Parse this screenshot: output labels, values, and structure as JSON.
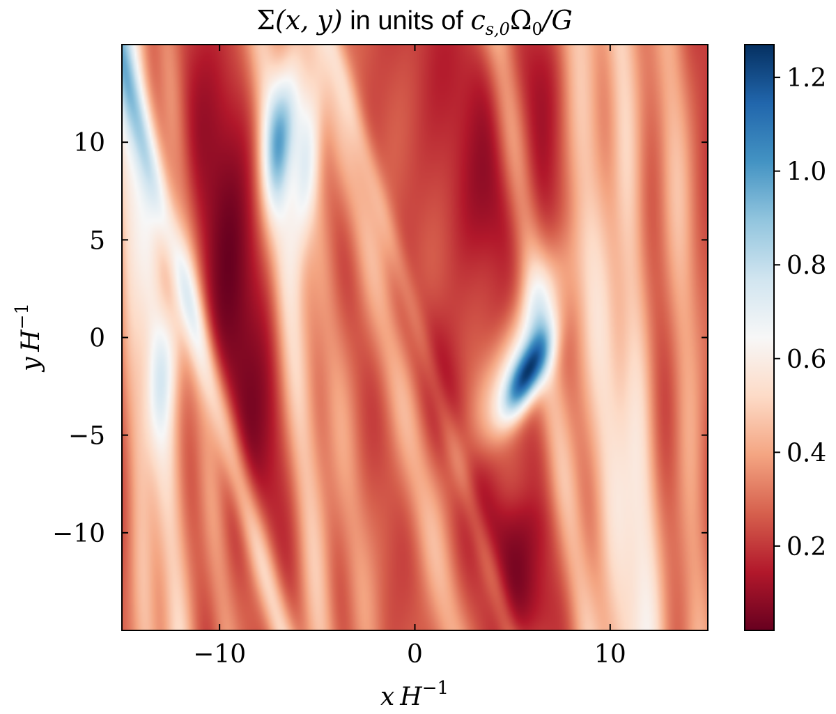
{
  "chart_data": {
    "type": "heatmap",
    "title_parts": {
      "sigma": "Σ",
      "args": "(x, y)",
      "text": " in units of ",
      "cs": "c",
      "cs_sub": "s,0",
      "omega": "Ω",
      "omega_sub": "0",
      "tail": "/G"
    },
    "xlabel": {
      "var": "x",
      "unit": "H",
      "exp": "−1"
    },
    "ylabel": {
      "var": "y",
      "unit": "H",
      "exp": "−1"
    },
    "xlim": [
      -15,
      15
    ],
    "ylim": [
      -15,
      15
    ],
    "xticks": [
      -10,
      0,
      10
    ],
    "xtick_labels": [
      "−10",
      "0",
      "10"
    ],
    "yticks": [
      -10,
      -5,
      0,
      5,
      10
    ],
    "ytick_labels": [
      "−10",
      "−5",
      "0",
      "5",
      "10"
    ],
    "colorbar": {
      "range": [
        0.02,
        1.27
      ],
      "ticks": [
        0.2,
        0.4,
        0.6,
        0.8,
        1.0,
        1.2
      ],
      "tick_labels": [
        "0.2",
        "0.4",
        "0.6",
        "0.8",
        "1.0",
        "1.2"
      ],
      "colormap": "RdBu",
      "stops": [
        "#67001f",
        "#b2182b",
        "#d6604d",
        "#f4a582",
        "#fddbc7",
        "#f7f7f7",
        "#d1e5f0",
        "#92c5de",
        "#4393c3",
        "#2166ac",
        "#053061"
      ]
    },
    "grid": false,
    "background_level": 0.22,
    "features": [
      {
        "kind": "dark-band",
        "x0": -9.2,
        "y0": 0,
        "slope": -0.06,
        "sigma": 1.3,
        "amp": -0.15,
        "y_center": 2,
        "y_half": 11
      },
      {
        "kind": "dark-band",
        "x0": 5.3,
        "y0": 10,
        "slope": -0.05,
        "sigma": 1.9,
        "amp": -0.15,
        "y_center": 10,
        "y_half": 5
      },
      {
        "kind": "dark-band",
        "x0": 2.3,
        "y0": -5,
        "slope": -0.35,
        "sigma": 1.0,
        "amp": -0.12,
        "y_center": -6,
        "y_half": 7
      },
      {
        "kind": "dark-band",
        "x0": 5.5,
        "y0": -13,
        "slope": 0.0,
        "sigma": 1.2,
        "amp": -0.1,
        "y_center": -12,
        "y_half": 3
      },
      {
        "kind": "light-band",
        "x0": -13.3,
        "y0": 0,
        "slope": -0.08,
        "sigma": 0.6,
        "amp": 0.32
      },
      {
        "kind": "light-band",
        "x0": -14.5,
        "y0": 0,
        "slope": -0.05,
        "sigma": 0.5,
        "amp": 0.22
      },
      {
        "kind": "light-band",
        "x0": -11.2,
        "y0": 0,
        "slope": -0.1,
        "sigma": 0.5,
        "amp": 0.16
      },
      {
        "kind": "light-band",
        "x0": -6.3,
        "y0": 0,
        "slope": -0.1,
        "sigma": 0.6,
        "amp": 0.28
      },
      {
        "kind": "light-band",
        "x0": -8.8,
        "y0": -8,
        "slope": -0.28,
        "sigma": 0.5,
        "amp": 0.3
      },
      {
        "kind": "light-band",
        "x0": -4.3,
        "y0": 0,
        "slope": -0.12,
        "sigma": 0.6,
        "amp": 0.14
      },
      {
        "kind": "light-band",
        "x0": -1.8,
        "y0": 2,
        "slope": -0.22,
        "sigma": 0.7,
        "amp": 0.24
      },
      {
        "kind": "light-band",
        "x0": 1.8,
        "y0": -5,
        "slope": -0.3,
        "sigma": 0.4,
        "amp": 0.12
      },
      {
        "kind": "light-band",
        "x0": 7.3,
        "y0": -5,
        "slope": -0.15,
        "sigma": 0.6,
        "amp": 0.26
      },
      {
        "kind": "light-band",
        "x0": 9.5,
        "y0": 0,
        "slope": -0.08,
        "sigma": 0.8,
        "amp": 0.3
      },
      {
        "kind": "light-band",
        "x0": 11.3,
        "y0": 0,
        "slope": -0.05,
        "sigma": 0.6,
        "amp": 0.28
      },
      {
        "kind": "light-band",
        "x0": 13.8,
        "y0": 0,
        "slope": -0.05,
        "sigma": 0.6,
        "amp": 0.2
      },
      {
        "kind": "blob",
        "x": -6.8,
        "y": 10.5,
        "sx": 0.6,
        "sy": 2.5,
        "rot": 0.1,
        "amp": 0.52
      },
      {
        "kind": "blob",
        "x": -5.6,
        "y": 8.5,
        "sx": 0.5,
        "sy": 3.5,
        "rot": 0.1,
        "amp": 0.36
      },
      {
        "kind": "blob",
        "x": 5.7,
        "y": -2.0,
        "sx": 0.55,
        "sy": 1.6,
        "rot": 0.42,
        "amp": 0.78
      },
      {
        "kind": "blob",
        "x": 5.2,
        "y": -1.0,
        "sx": 0.9,
        "sy": 3.6,
        "rot": 0.42,
        "amp": 0.34
      },
      {
        "kind": "blob",
        "x": -12.8,
        "y": -1.5,
        "sx": 0.6,
        "sy": 3.0,
        "rot": 0.15,
        "amp": 0.22
      }
    ]
  }
}
